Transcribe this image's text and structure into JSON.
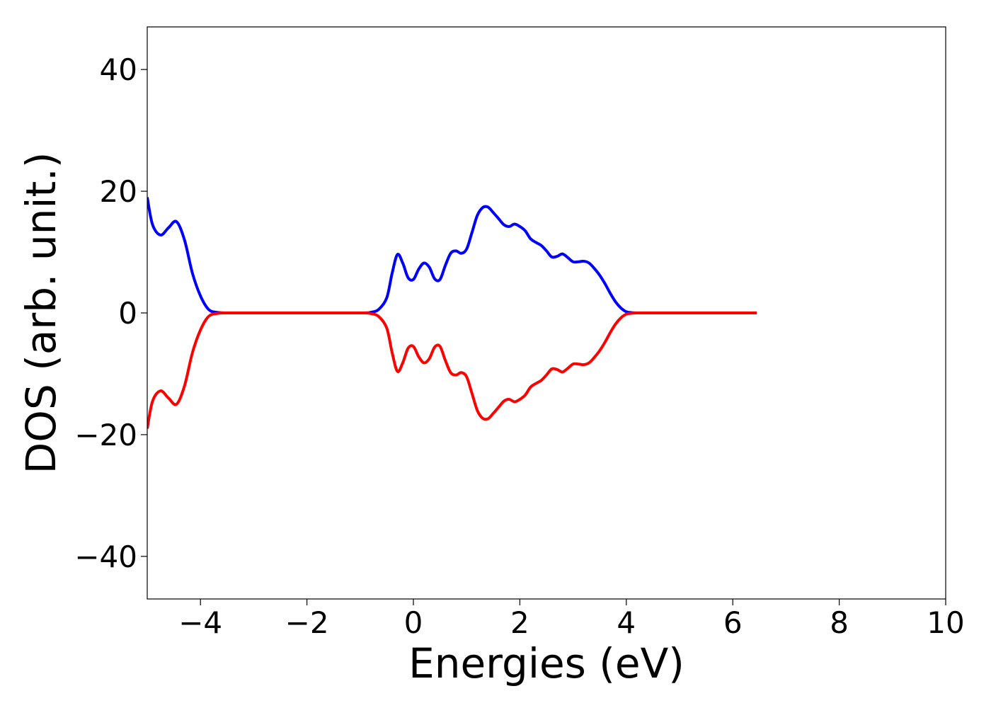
{
  "chart_data": {
    "type": "line",
    "title": "",
    "xlabel": "Energies (eV)",
    "ylabel": "DOS (arb. unit.)",
    "xlim": [
      -5,
      10
    ],
    "ylim": [
      -47,
      47
    ],
    "xticks": [
      -4,
      -2,
      0,
      2,
      4,
      6,
      8,
      10
    ],
    "xtick_labels": [
      "−4",
      "−2",
      "0",
      "2",
      "4",
      "6",
      "8",
      "10"
    ],
    "yticks": [
      40,
      20,
      0,
      -20,
      -40
    ],
    "ytick_labels": [
      "40",
      "20",
      "0",
      "−20",
      "−40"
    ],
    "grid": false,
    "legend": "none",
    "series": [
      {
        "color": "#0000ff",
        "x": [
          -5.0,
          -4.9,
          -4.75,
          -4.6,
          -4.45,
          -4.3,
          -4.15,
          -4.0,
          -3.85,
          -3.7,
          -3.5,
          -3.0,
          -2.0,
          -1.0,
          -0.8,
          -0.65,
          -0.5,
          -0.4,
          -0.3,
          -0.2,
          -0.1,
          0.0,
          0.1,
          0.2,
          0.3,
          0.4,
          0.5,
          0.6,
          0.7,
          0.8,
          0.9,
          1.0,
          1.1,
          1.2,
          1.3,
          1.4,
          1.5,
          1.6,
          1.7,
          1.8,
          1.9,
          2.0,
          2.1,
          2.2,
          2.3,
          2.4,
          2.5,
          2.6,
          2.7,
          2.8,
          2.9,
          3.0,
          3.1,
          3.2,
          3.3,
          3.4,
          3.5,
          3.6,
          3.7,
          3.8,
          3.9,
          4.0,
          4.1,
          4.2,
          4.3,
          4.4,
          4.5,
          4.6,
          4.7,
          5.0,
          6.0,
          6.45
        ],
        "y": [
          19,
          14.5,
          12.8,
          14,
          15,
          12,
          6.5,
          2.8,
          0.6,
          0.1,
          0,
          0,
          0,
          0,
          0.1,
          0.6,
          2.5,
          6.5,
          9.6,
          8.2,
          5.8,
          5.5,
          7.2,
          8.2,
          7.5,
          5.6,
          5.5,
          7.8,
          9.8,
          10.2,
          9.8,
          10.5,
          13.2,
          16,
          17.3,
          17.4,
          16.5,
          15.5,
          14.5,
          14.2,
          14.6,
          14.2,
          13.5,
          12.2,
          11.6,
          11.1,
          10.2,
          9.2,
          9.3,
          9.7,
          9.1,
          8.4,
          8.4,
          8.5,
          8.2,
          7.3,
          6.2,
          4.8,
          3.2,
          1.8,
          0.8,
          0.2,
          0.05,
          0,
          0,
          0,
          0,
          0,
          0,
          0,
          0,
          0
        ]
      },
      {
        "color": "#ff0000",
        "x": [
          -5.0,
          -4.9,
          -4.75,
          -4.6,
          -4.45,
          -4.3,
          -4.15,
          -4.0,
          -3.85,
          -3.7,
          -3.5,
          -3.0,
          -2.0,
          -1.0,
          -0.8,
          -0.65,
          -0.5,
          -0.4,
          -0.3,
          -0.2,
          -0.1,
          0.0,
          0.1,
          0.2,
          0.3,
          0.4,
          0.5,
          0.6,
          0.7,
          0.8,
          0.9,
          1.0,
          1.1,
          1.2,
          1.3,
          1.4,
          1.5,
          1.6,
          1.7,
          1.8,
          1.9,
          2.0,
          2.1,
          2.2,
          2.3,
          2.4,
          2.5,
          2.6,
          2.7,
          2.8,
          2.9,
          3.0,
          3.1,
          3.2,
          3.3,
          3.4,
          3.5,
          3.6,
          3.7,
          3.8,
          3.9,
          4.0,
          4.1,
          4.2,
          4.3,
          4.4,
          4.5,
          4.6,
          4.7,
          5.0,
          6.0,
          6.45
        ],
        "y": [
          -19,
          -14.5,
          -12.8,
          -14,
          -15,
          -12,
          -6.5,
          -2.8,
          -0.6,
          -0.1,
          0,
          0,
          0,
          0,
          -0.1,
          -0.6,
          -2.5,
          -6.5,
          -9.6,
          -8.2,
          -5.8,
          -5.5,
          -7.2,
          -8.2,
          -7.5,
          -5.6,
          -5.5,
          -7.8,
          -9.8,
          -10.2,
          -9.8,
          -10.5,
          -13.2,
          -16,
          -17.3,
          -17.4,
          -16.5,
          -15.5,
          -14.5,
          -14.2,
          -14.6,
          -14.2,
          -13.5,
          -12.2,
          -11.6,
          -11.1,
          -10.2,
          -9.2,
          -9.3,
          -9.7,
          -9.1,
          -8.4,
          -8.4,
          -8.5,
          -8.2,
          -7.3,
          -6.2,
          -4.8,
          -3.2,
          -1.8,
          -0.8,
          -0.2,
          -0.05,
          0,
          0,
          0,
          0,
          0,
          0,
          0,
          0,
          0
        ]
      }
    ]
  }
}
